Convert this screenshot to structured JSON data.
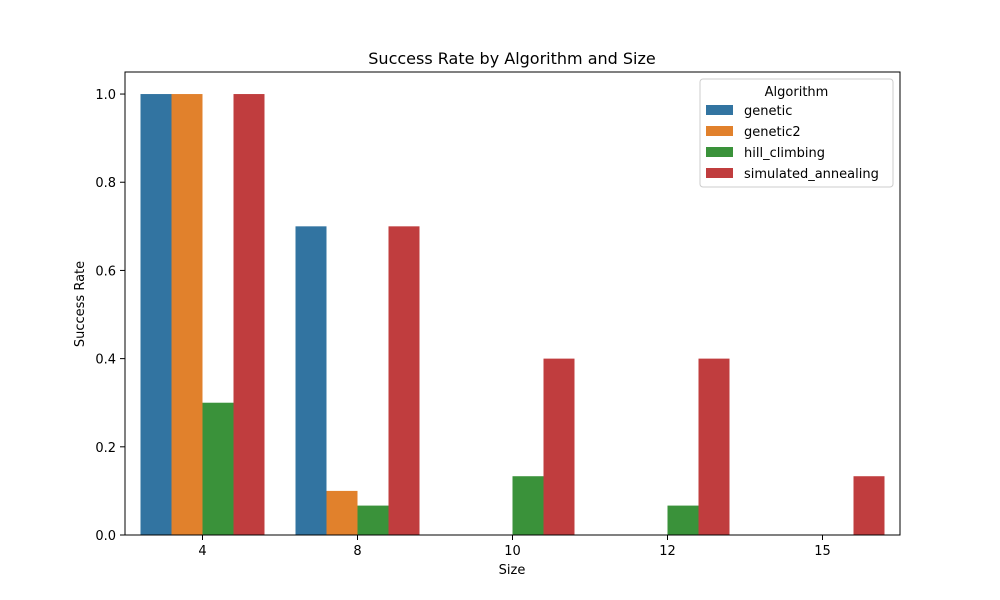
{
  "chart_data": {
    "type": "bar",
    "title": "Success Rate by Algorithm and Size",
    "xlabel": "Size",
    "ylabel": "Success Rate",
    "categories": [
      "4",
      "8",
      "10",
      "12",
      "15"
    ],
    "ylim": [
      0,
      1.05
    ],
    "yticks": [
      "0.0",
      "0.2",
      "0.4",
      "0.6",
      "0.8",
      "1.0"
    ],
    "grid": false,
    "legend": {
      "title": "Algorithm",
      "placement": "top-right"
    },
    "series": [
      {
        "name": "genetic",
        "color": "#3274a1",
        "values": [
          1.0,
          0.7,
          0,
          0,
          0
        ]
      },
      {
        "name": "genetic2",
        "color": "#e1812c",
        "values": [
          1.0,
          0.1,
          0,
          0,
          0
        ]
      },
      {
        "name": "hill_climbing",
        "color": "#3a923a",
        "values": [
          0.3,
          0.0667,
          0.1333,
          0.0667,
          0
        ]
      },
      {
        "name": "simulated_annealing",
        "color": "#c03d3e",
        "values": [
          1.0,
          0.7,
          0.4,
          0.4,
          0.1333
        ]
      }
    ]
  }
}
